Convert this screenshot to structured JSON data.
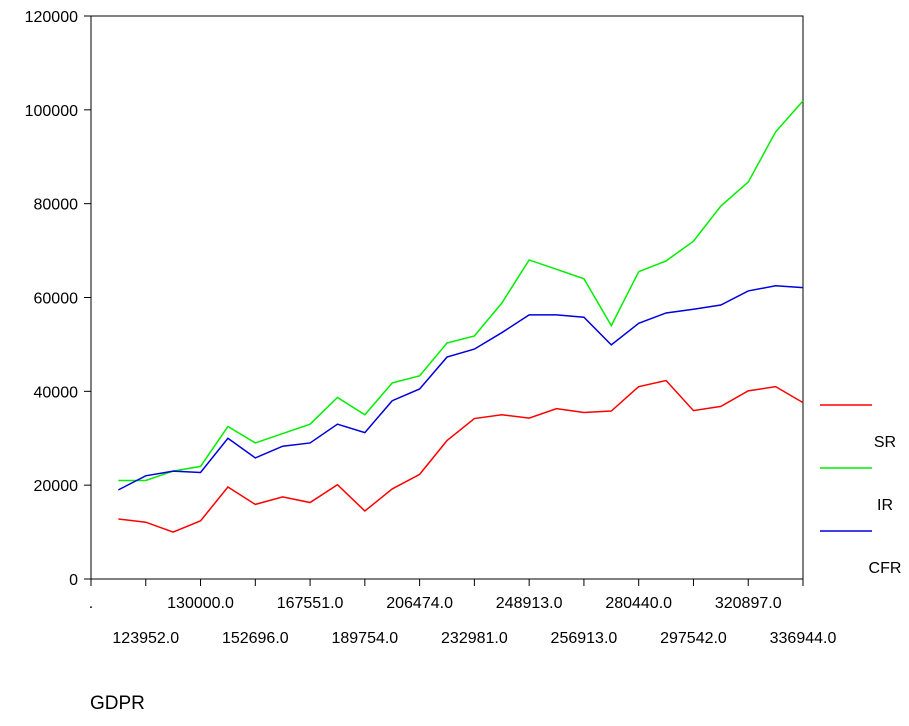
{
  "chart_data": {
    "type": "line",
    "x_label": "GDPR",
    "categories": [
      ".",
      null,
      "123952.0",
      null,
      "130000.0",
      null,
      "152696.0",
      null,
      "167551.0",
      null,
      "189754.0",
      null,
      "206474.0",
      null,
      "232981.0",
      null,
      "248913.0",
      null,
      "256913.0",
      null,
      "280440.0",
      null,
      "297542.0",
      null,
      "320897.0",
      null,
      "336944.0"
    ],
    "series": [
      {
        "name": "SR",
        "color": "#ff0000",
        "values": [
          null,
          12800,
          12100,
          10000,
          12400,
          19600,
          15900,
          17500,
          16300,
          20100,
          14500,
          19200,
          22300,
          29500,
          34200,
          35000,
          34300,
          36300,
          35500,
          35800,
          41000,
          42300,
          35900,
          36800,
          40100,
          41000,
          37600
        ]
      },
      {
        "name": "IR",
        "color": "#00ee00",
        "values": [
          null,
          21000,
          21000,
          23000,
          24000,
          32500,
          29000,
          31000,
          33000,
          38700,
          35000,
          41800,
          43300,
          50300,
          51800,
          58800,
          68000,
          66000,
          64000,
          54000,
          65500,
          67800,
          72000,
          79500,
          84600,
          95300,
          101900
        ]
      },
      {
        "name": "CFR",
        "color": "#0000dd",
        "values": [
          null,
          19000,
          22000,
          23000,
          22700,
          30000,
          25800,
          28300,
          29000,
          33000,
          31200,
          38000,
          40500,
          47300,
          49000,
          52500,
          56300,
          56300,
          55800,
          49900,
          54500,
          56700,
          57500,
          58400,
          61400,
          62500,
          62100
        ]
      }
    ],
    "ylim": [
      0,
      120000
    ],
    "yticks": [
      0,
      20000,
      40000,
      60000,
      80000,
      100000,
      120000
    ]
  }
}
